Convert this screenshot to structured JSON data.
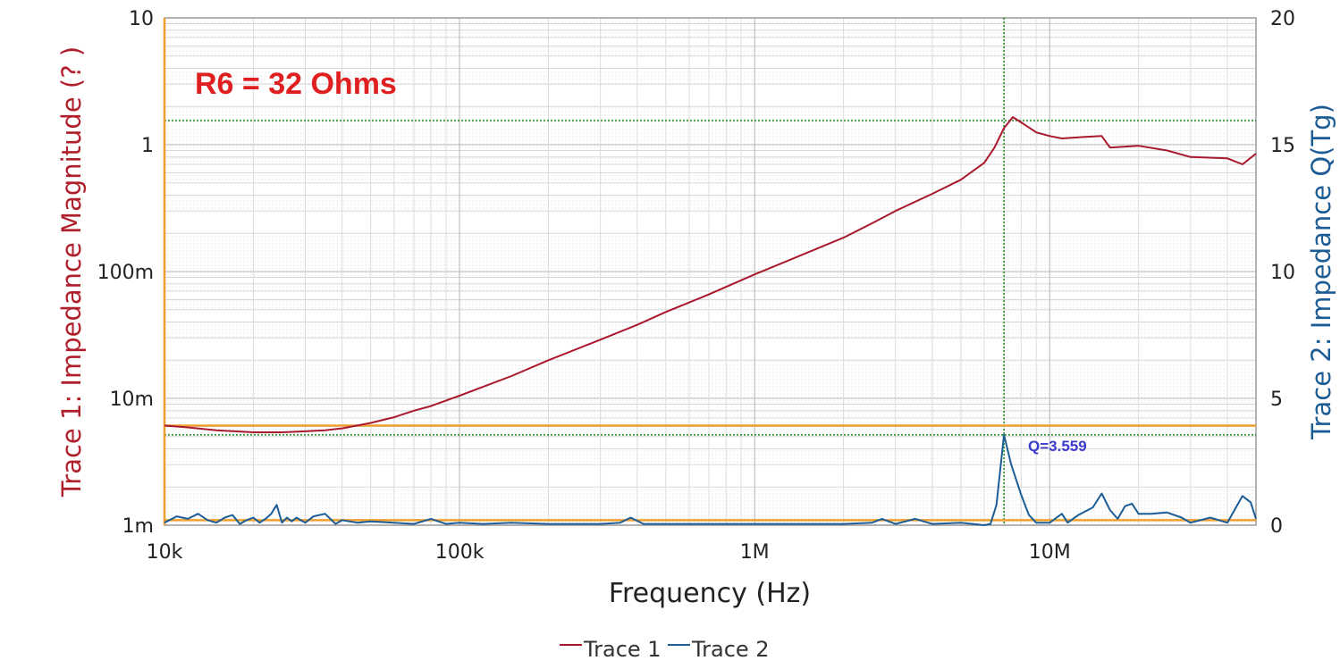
{
  "chart_data": {
    "type": "line",
    "xlabel": "Frequency (Hz)",
    "ylabel_left": "Trace 1: Impedance Magnitude (? )",
    "ylabel_right": "Trace 2: Impedance Q(Tg)",
    "x_scale": "log",
    "xlim": [
      10000,
      50000000
    ],
    "x_ticks": [
      {
        "value": 10000,
        "label": "10k"
      },
      {
        "value": 100000,
        "label": "100k"
      },
      {
        "value": 1000000,
        "label": "1M"
      },
      {
        "value": 10000000,
        "label": "10M"
      }
    ],
    "y_left_scale": "log",
    "y_left_lim": [
      0.001,
      10
    ],
    "y_left_ticks": [
      {
        "value": 10,
        "label": "10"
      },
      {
        "value": 1,
        "label": "1"
      },
      {
        "value": 0.1,
        "label": "100m"
      },
      {
        "value": 0.01,
        "label": "10m"
      },
      {
        "value": 0.001,
        "label": "1m"
      }
    ],
    "y_right_lim": [
      0,
      20
    ],
    "y_right_ticks": [
      {
        "value": 20,
        "label": "20"
      },
      {
        "value": 15,
        "label": "15"
      },
      {
        "value": 10,
        "label": "10"
      },
      {
        "value": 5,
        "label": "5"
      },
      {
        "value": 0,
        "label": "0"
      }
    ],
    "grid": true,
    "legend_position": "bottom-center",
    "series": [
      {
        "name": "Trace 1",
        "color": "#a8192e",
        "axis": "left",
        "points": [
          [
            10000,
            0.0061
          ],
          [
            12000,
            0.0059
          ],
          [
            15000,
            0.0056
          ],
          [
            20000,
            0.0054
          ],
          [
            25000,
            0.0054
          ],
          [
            30000,
            0.0055
          ],
          [
            35000,
            0.0056
          ],
          [
            40000,
            0.0058
          ],
          [
            50000,
            0.0064
          ],
          [
            60000,
            0.0071
          ],
          [
            70000,
            0.008
          ],
          [
            80000,
            0.0087
          ],
          [
            100000,
            0.0105
          ],
          [
            150000,
            0.015
          ],
          [
            200000,
            0.02
          ],
          [
            300000,
            0.029
          ],
          [
            400000,
            0.038
          ],
          [
            500000,
            0.048
          ],
          [
            700000,
            0.066
          ],
          [
            1000000,
            0.095
          ],
          [
            1500000,
            0.14
          ],
          [
            2000000,
            0.185
          ],
          [
            2500000,
            0.24
          ],
          [
            3000000,
            0.3
          ],
          [
            4000000,
            0.41
          ],
          [
            5000000,
            0.53
          ],
          [
            6000000,
            0.72
          ],
          [
            6500000,
            0.95
          ],
          [
            7000000,
            1.35
          ],
          [
            7500000,
            1.65
          ],
          [
            8000000,
            1.5
          ],
          [
            9000000,
            1.25
          ],
          [
            10000000,
            1.17
          ],
          [
            11000000,
            1.12
          ],
          [
            13000000,
            1.15
          ],
          [
            15000000,
            1.17
          ],
          [
            16000000,
            0.95
          ],
          [
            20000000,
            0.98
          ],
          [
            25000000,
            0.9
          ],
          [
            30000000,
            0.8
          ],
          [
            40000000,
            0.78
          ],
          [
            45000000,
            0.7
          ],
          [
            50000000,
            0.85
          ]
        ]
      },
      {
        "name": "Trace 2",
        "color": "#1d5d96",
        "axis": "right",
        "points": [
          [
            10000,
            0.1
          ],
          [
            11000,
            0.35
          ],
          [
            12000,
            0.25
          ],
          [
            13000,
            0.45
          ],
          [
            14000,
            0.2
          ],
          [
            15000,
            0.1
          ],
          [
            16000,
            0.3
          ],
          [
            17000,
            0.4
          ],
          [
            18000,
            0.05
          ],
          [
            19000,
            0.2
          ],
          [
            20000,
            0.3
          ],
          [
            21000,
            0.1
          ],
          [
            22000,
            0.25
          ],
          [
            23000,
            0.45
          ],
          [
            24000,
            0.8
          ],
          [
            25000,
            0.1
          ],
          [
            26000,
            0.3
          ],
          [
            27000,
            0.15
          ],
          [
            28000,
            0.3
          ],
          [
            30000,
            0.1
          ],
          [
            32000,
            0.35
          ],
          [
            35000,
            0.45
          ],
          [
            38000,
            0.05
          ],
          [
            40000,
            0.2
          ],
          [
            45000,
            0.1
          ],
          [
            50000,
            0.15
          ],
          [
            60000,
            0.1
          ],
          [
            70000,
            0.05
          ],
          [
            80000,
            0.25
          ],
          [
            90000,
            0.05
          ],
          [
            100000,
            0.1
          ],
          [
            120000,
            0.05
          ],
          [
            150000,
            0.1
          ],
          [
            200000,
            0.05
          ],
          [
            300000,
            0.05
          ],
          [
            350000,
            0.1
          ],
          [
            380000,
            0.3
          ],
          [
            420000,
            0.05
          ],
          [
            600000,
            0.05
          ],
          [
            1000000,
            0.05
          ],
          [
            2000000,
            0.05
          ],
          [
            2500000,
            0.1
          ],
          [
            2700000,
            0.25
          ],
          [
            3000000,
            0.05
          ],
          [
            3500000,
            0.25
          ],
          [
            4000000,
            0.05
          ],
          [
            5000000,
            0.1
          ],
          [
            6000000,
            0.0
          ],
          [
            6300000,
            0.05
          ],
          [
            6600000,
            0.8
          ],
          [
            7000000,
            3.56
          ],
          [
            7400000,
            2.4
          ],
          [
            8000000,
            1.2
          ],
          [
            8500000,
            0.4
          ],
          [
            9000000,
            0.1
          ],
          [
            10000000,
            0.1
          ],
          [
            11000000,
            0.45
          ],
          [
            11500000,
            0.1
          ],
          [
            12500000,
            0.4
          ],
          [
            14000000,
            0.7
          ],
          [
            15000000,
            1.25
          ],
          [
            16000000,
            0.6
          ],
          [
            17000000,
            0.25
          ],
          [
            18000000,
            0.75
          ],
          [
            19000000,
            0.85
          ],
          [
            20000000,
            0.45
          ],
          [
            22000000,
            0.45
          ],
          [
            25000000,
            0.5
          ],
          [
            28000000,
            0.3
          ],
          [
            30000000,
            0.1
          ],
          [
            35000000,
            0.3
          ],
          [
            40000000,
            0.1
          ],
          [
            45000000,
            1.15
          ],
          [
            48000000,
            0.9
          ],
          [
            50000000,
            0.25
          ]
        ]
      }
    ],
    "annotations": [
      {
        "text": "R6 = 32 Ohms",
        "color": "#e02020"
      },
      {
        "text": "Q=3.559",
        "color": "#3b3bd0"
      }
    ],
    "cursors": {
      "vertical_x": 7000000,
      "horizontal_left_y": 1.55,
      "horizontal_right_y": 3.56,
      "orange_left_y": 0.0061,
      "orange_right_y": 0.2
    }
  }
}
